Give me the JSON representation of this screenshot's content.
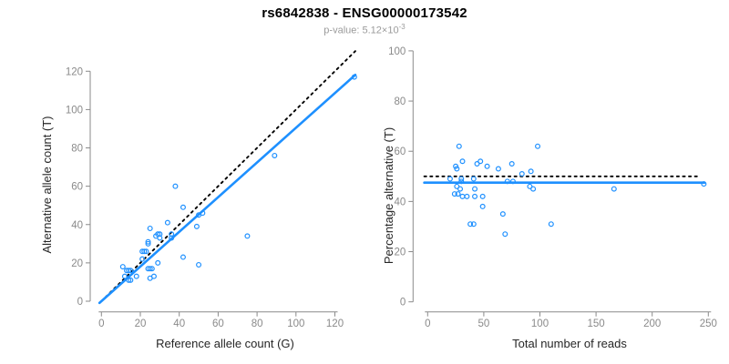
{
  "header": {
    "title": "rs6842838 - ENSG00000173542",
    "subtitle_base": "p-value: 5.12×10",
    "subtitle_exponent": "-3"
  },
  "colors": {
    "accent": "#1E90FF",
    "axis": "#8a8a8a",
    "tick_label": "#8a8a8a",
    "axis_title": "#262626",
    "reference_line": "#000000"
  },
  "chart_data": [
    {
      "type": "scatter",
      "name": "allele-counts-scatter",
      "xlabel": "Reference allele count (G)",
      "ylabel": "Alternative allele count (T)",
      "xlim": [
        0,
        130
      ],
      "ylim": [
        0,
        130
      ],
      "xticks": [
        0,
        20,
        40,
        60,
        80,
        100,
        120
      ],
      "yticks": [
        0,
        20,
        40,
        60,
        80,
        100,
        120
      ],
      "grid": false,
      "point_color": "#1E90FF",
      "points": [
        [
          11,
          18
        ],
        [
          12,
          13
        ],
        [
          13,
          16
        ],
        [
          14,
          16
        ],
        [
          15,
          16
        ],
        [
          14,
          11
        ],
        [
          15,
          11
        ],
        [
          18,
          13
        ],
        [
          21,
          22
        ],
        [
          24,
          17
        ],
        [
          25,
          17
        ],
        [
          26,
          17
        ],
        [
          29,
          20
        ],
        [
          25,
          12
        ],
        [
          27,
          13
        ],
        [
          21,
          26
        ],
        [
          22,
          26
        ],
        [
          23,
          26
        ],
        [
          24,
          30
        ],
        [
          24,
          31
        ],
        [
          25,
          38
        ],
        [
          28,
          34
        ],
        [
          30,
          33
        ],
        [
          29,
          35
        ],
        [
          30,
          35
        ],
        [
          34,
          41
        ],
        [
          36,
          33
        ],
        [
          36,
          35
        ],
        [
          38,
          60
        ],
        [
          42,
          23
        ],
        [
          42,
          49
        ],
        [
          49,
          39
        ],
        [
          50,
          19
        ],
        [
          50,
          45
        ],
        [
          52,
          46
        ],
        [
          75,
          34
        ],
        [
          89,
          76
        ],
        [
          130,
          117
        ]
      ],
      "lines": [
        {
          "name": "identity-line",
          "style": "dotted",
          "color": "#000000",
          "points": [
            [
              0,
              0
            ],
            [
              130.5,
              130.5
            ]
          ]
        },
        {
          "name": "fit-line",
          "style": "solid",
          "color": "#1E90FF",
          "points": [
            [
              -1,
              -0.9
            ],
            [
              130.5,
              118.1
            ]
          ]
        }
      ]
    },
    {
      "type": "scatter",
      "name": "percentage-scatter",
      "xlabel": "Total number of reads",
      "ylabel": "Percentage alternative (T)",
      "xlim": [
        0,
        250
      ],
      "ylim": [
        0,
        100
      ],
      "xticks": [
        0,
        50,
        100,
        150,
        200,
        250
      ],
      "yticks": [
        0,
        20,
        40,
        60,
        80,
        100
      ],
      "grid": false,
      "point_color": "#1E90FF",
      "points": [
        [
          28,
          62
        ],
        [
          98,
          62
        ],
        [
          31,
          56
        ],
        [
          25,
          54
        ],
        [
          44,
          55
        ],
        [
          47,
          56
        ],
        [
          53,
          54
        ],
        [
          63,
          53
        ],
        [
          26,
          53
        ],
        [
          75,
          55
        ],
        [
          84,
          51
        ],
        [
          92,
          52
        ],
        [
          20,
          49
        ],
        [
          30,
          49
        ],
        [
          30,
          48
        ],
        [
          41,
          49
        ],
        [
          71,
          48
        ],
        [
          76,
          48
        ],
        [
          26,
          46
        ],
        [
          29,
          45
        ],
        [
          42,
          45
        ],
        [
          91,
          46
        ],
        [
          94,
          45
        ],
        [
          24,
          43
        ],
        [
          27,
          43
        ],
        [
          31,
          42
        ],
        [
          35,
          42
        ],
        [
          42,
          42
        ],
        [
          49,
          42
        ],
        [
          166,
          45
        ],
        [
          246,
          47
        ],
        [
          49,
          38
        ],
        [
          67,
          35
        ],
        [
          38,
          31
        ],
        [
          41,
          31
        ],
        [
          110,
          31
        ],
        [
          69,
          27
        ]
      ],
      "lines": [
        {
          "name": "expected-line",
          "style": "dotted",
          "color": "#000000",
          "points": [
            [
              -3,
              50
            ],
            [
              242,
              50
            ]
          ]
        },
        {
          "name": "fit-line",
          "style": "solid",
          "color": "#1E90FF",
          "points": [
            [
              -3,
              47.5
            ],
            [
              246.5,
              47.5
            ]
          ]
        }
      ]
    }
  ]
}
